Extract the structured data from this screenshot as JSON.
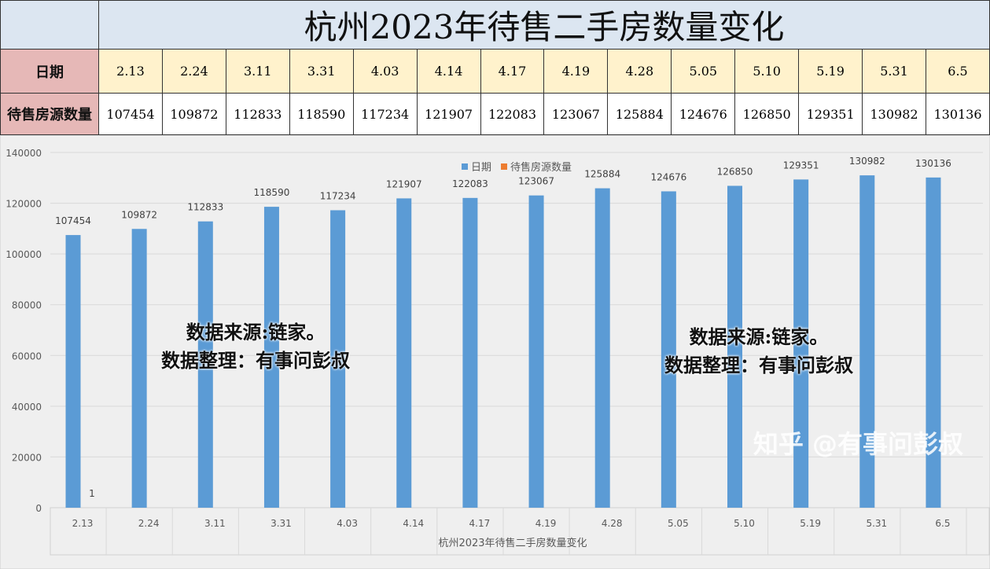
{
  "table": {
    "title": "杭州2023年待售二手房数量变化",
    "row1_header": "日期",
    "row2_header": "待售房源数量"
  },
  "chart_data": {
    "type": "bar",
    "title": "杭州2023年待售二手房数量变化",
    "categories": [
      "2.13",
      "2.24",
      "3.11",
      "3.31",
      "4.03",
      "4.14",
      "4.17",
      "4.19",
      "4.28",
      "5.05",
      "5.10",
      "5.19",
      "5.31",
      "6.5"
    ],
    "series": [
      {
        "name": "日期",
        "color": "#5b9bd5",
        "values": [
          107454,
          109872,
          112833,
          118590,
          117234,
          121907,
          122083,
          123067,
          125884,
          124676,
          126850,
          129351,
          130982,
          130136
        ]
      },
      {
        "name": "待售房源数量",
        "color": "#ed7d31",
        "values": [
          1,
          null,
          null,
          null,
          null,
          null,
          null,
          null,
          null,
          null,
          null,
          null,
          null,
          null
        ]
      }
    ],
    "yticks": [
      0,
      20000,
      40000,
      60000,
      80000,
      100000,
      120000,
      140000
    ],
    "ylim": [
      0,
      140000
    ],
    "xlabel": "杭州2023年待售二手房数量变化",
    "legend": "top-center",
    "grid": true
  },
  "watermarks": {
    "line1": "数据来源:链家。",
    "line2": "数据整理：有事问彭叔",
    "site": "知乎 @有事问彭叔"
  }
}
